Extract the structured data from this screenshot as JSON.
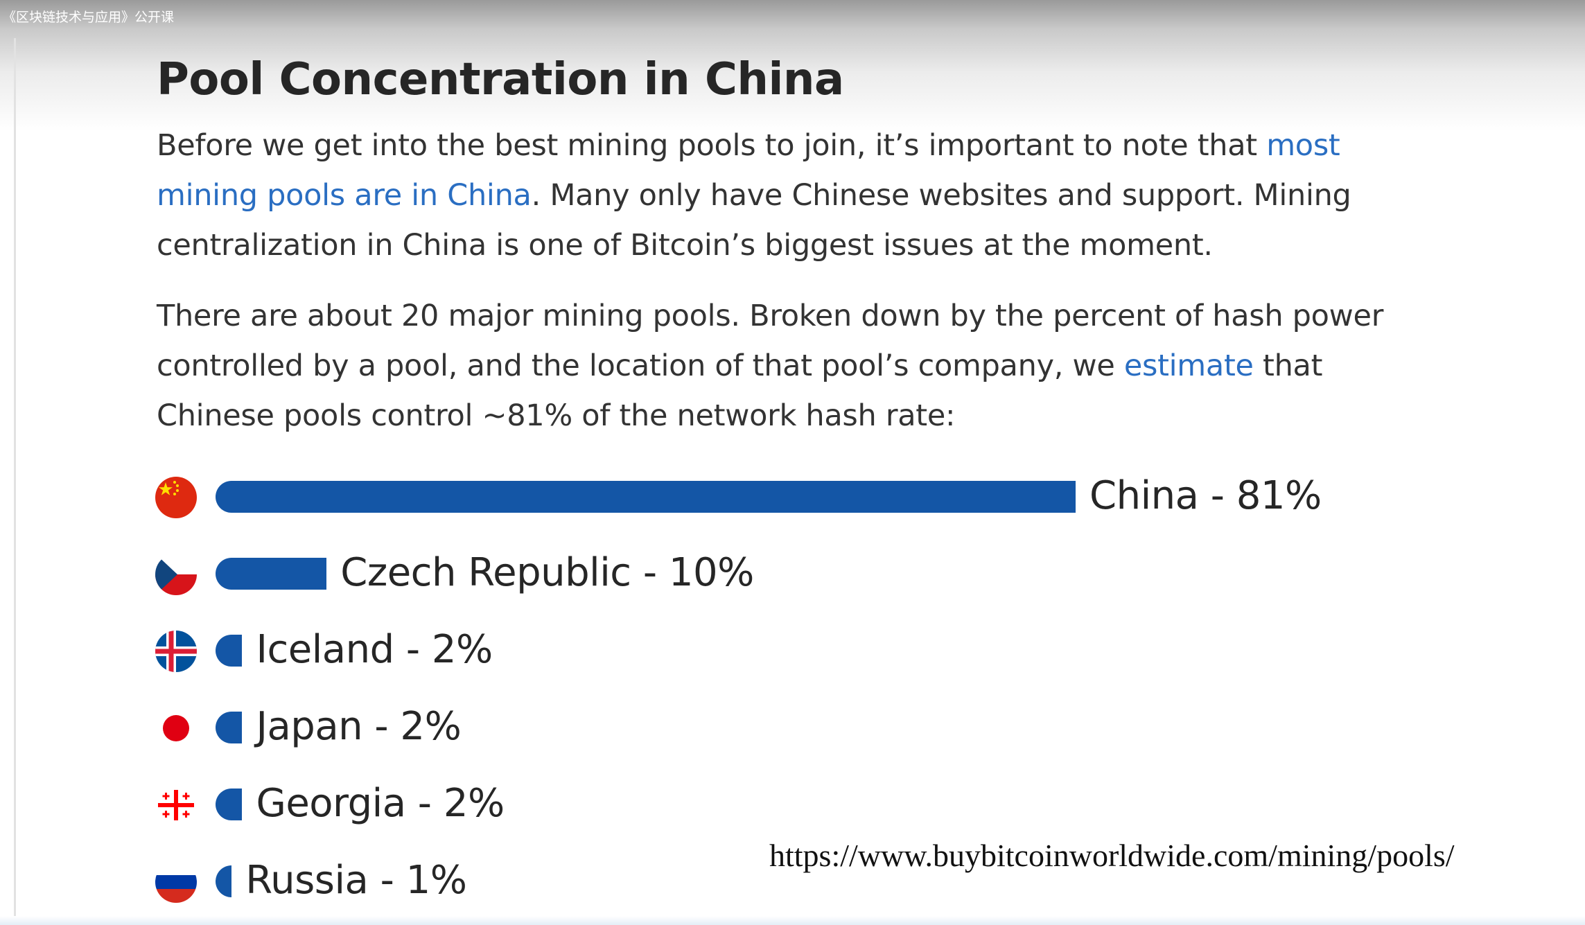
{
  "header": {
    "video_title": "《区块链技术与应用》公开课"
  },
  "article": {
    "title": "Pool Concentration in China",
    "p1_before": "Before we get into the best mining pools to join, it’s important to note that ",
    "p1_link": "most mining pools are in China",
    "p1_after": ". Many only have Chinese websites and support. Mining centralization in China is one of Bitcoin’s biggest issues at the moment.",
    "p2_before": "There are about 20 major mining pools. Broken down by the percent of hash power controlled by a pool, and the location of that pool’s company, we ",
    "p2_link": "estimate",
    "p2_after": " that Chinese pools control ~81% of the network hash rate:"
  },
  "chart_data": {
    "type": "bar",
    "orientation": "horizontal",
    "categories": [
      "China",
      "Czech Republic",
      "Iceland",
      "Japan",
      "Georgia",
      "Russia"
    ],
    "values": [
      81,
      10,
      2,
      2,
      2,
      1
    ],
    "unit": "%",
    "labels": [
      "China - 81%",
      "Czech Republic - 10%",
      "Iceland - 2%",
      "Japan - 2%",
      "Georgia - 2%",
      "Russia - 1%"
    ],
    "flags": [
      "china-flag-icon",
      "czech-flag-icon",
      "iceland-flag-icon",
      "japan-flag-icon",
      "georgia-flag-icon",
      "russia-flag-icon"
    ],
    "bar_color": "#1456a6",
    "grid": false
  },
  "footer": {
    "source_url": "https://www.buybitcoinworldwide.com/mining/pools/"
  }
}
